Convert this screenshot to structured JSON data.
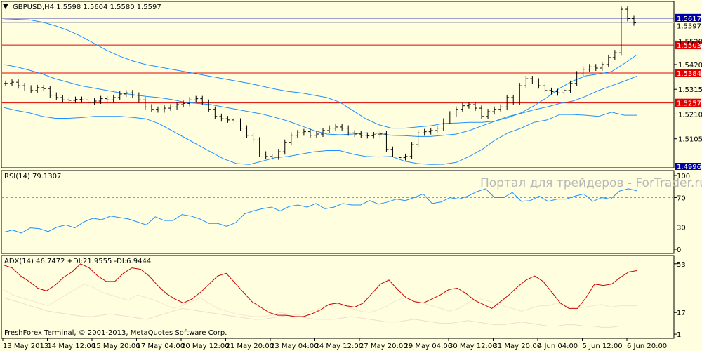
{
  "window": {
    "header": "GBPUSD,H4  1.5598 1.5604 1.5580 1.5597",
    "watermark": "Портал для трейдеров - ForTrader.ru",
    "copyright": "FreshForex Terminal, © 2001-2013, MetaQuotes Software Corp.",
    "dropdown_icon": "triangle-down-icon"
  },
  "colors": {
    "background": "#ffffe0",
    "frame": "#000000",
    "bollinger": "#1e90ff",
    "level_line": "#e00000",
    "current_line": "#0000aa",
    "rsi": "#1e90ff",
    "adx": "#cc0000",
    "di_plus": "#f3e6cc",
    "di_minus": "#f0dcd0",
    "candle": "#000000"
  },
  "chart_data": [
    {
      "type": "candlestick",
      "symbol": "GBPUSD",
      "timeframe": "H4",
      "ohlc_last": {
        "open": 1.5598,
        "high": 1.5604,
        "low": 1.558,
        "close": 1.5597
      },
      "ylim": [
        1.4985,
        1.5685
      ],
      "price_ticks": [
        "1.5520",
        "1.5420",
        "1.5315",
        "1.5210",
        "1.5105"
      ],
      "price_tick_values": [
        1.552,
        1.542,
        1.5315,
        1.521,
        1.5105
      ],
      "levels": [
        {
          "label": "1.5503",
          "value": 1.5503,
          "kind": "resistance"
        },
        {
          "label": "1.5384",
          "value": 1.5384,
          "kind": "resistance"
        },
        {
          "label": "1.5257",
          "value": 1.5257,
          "kind": "resistance"
        }
      ],
      "current_price": {
        "label": "1.5617",
        "value": 1.5617
      },
      "partial_label": "1.5597",
      "bottom_label": {
        "label": "1.4996",
        "value": 1.4996
      },
      "x_labels": [
        "13 May 2013",
        "14 May 12:00",
        "15 May 20:00",
        "17 May 04:00",
        "20 May 12:00",
        "21 May 20:00",
        "23 May 04:00",
        "24 May 12:00",
        "27 May 20:00",
        "29 May 04:00",
        "30 May 12:00",
        "31 May 20:00",
        "4 Jun 04:00",
        "5 Jun 12:00",
        "6 Jun 20:00"
      ],
      "closes": [
        1.534,
        1.5345,
        1.533,
        1.532,
        1.531,
        1.5322,
        1.5318,
        1.529,
        1.528,
        1.527,
        1.5268,
        1.5272,
        1.527,
        1.526,
        1.5265,
        1.5275,
        1.527,
        1.528,
        1.5295,
        1.53,
        1.529,
        1.527,
        1.524,
        1.523,
        1.5228,
        1.5235,
        1.524,
        1.525,
        1.5255,
        1.527,
        1.5275,
        1.526,
        1.523,
        1.52,
        1.519,
        1.5185,
        1.518,
        1.515,
        1.512,
        1.51,
        1.504,
        1.503,
        1.5028,
        1.505,
        1.509,
        1.512,
        1.513,
        1.5135,
        1.512,
        1.5125,
        1.514,
        1.515,
        1.5155,
        1.515,
        1.513,
        1.5125,
        1.512,
        1.5118,
        1.5122,
        1.5125,
        1.506,
        1.504,
        1.5025,
        1.503,
        1.508,
        1.513,
        1.5135,
        1.514,
        1.515,
        1.518,
        1.521,
        1.523,
        1.5245,
        1.525,
        1.5235,
        1.52,
        1.522,
        1.523,
        1.524,
        1.528,
        1.526,
        1.533,
        1.536,
        1.535,
        1.533,
        1.531,
        1.5305,
        1.53,
        1.531,
        1.534,
        1.538,
        1.54,
        1.541,
        1.5405,
        1.542,
        1.545,
        1.547,
        1.5655,
        1.5615,
        1.5597
      ],
      "bollinger": [
        {
          "name": "upper",
          "values": [
            1.561,
            1.5612,
            1.561,
            1.56,
            1.5585,
            1.5565,
            1.554,
            1.551,
            1.548,
            1.5455,
            1.5435,
            1.542,
            1.541,
            1.54,
            1.539,
            1.538,
            1.537,
            1.536,
            1.535,
            1.534,
            1.5328,
            1.5316,
            1.5306,
            1.53,
            1.529,
            1.528,
            1.526,
            1.5225,
            1.519,
            1.5165,
            1.515,
            1.515,
            1.5155,
            1.516,
            1.517,
            1.5172,
            1.5175,
            1.5175,
            1.518,
            1.5195,
            1.5215,
            1.5245,
            1.528,
            1.532,
            1.535,
            1.5372,
            1.538,
            1.539,
            1.5425,
            1.5463
          ]
        },
        {
          "name": "middle",
          "values": [
            1.542,
            1.541,
            1.5396,
            1.538,
            1.536,
            1.5345,
            1.533,
            1.532,
            1.531,
            1.53,
            1.5292,
            1.5285,
            1.528,
            1.5272,
            1.526,
            1.5255,
            1.525,
            1.524,
            1.523,
            1.522,
            1.521,
            1.5196,
            1.518,
            1.516,
            1.514,
            1.5125,
            1.5122,
            1.5125,
            1.513,
            1.5128,
            1.512,
            1.5118,
            1.5115,
            1.5115,
            1.512,
            1.5125,
            1.514,
            1.516,
            1.518,
            1.52,
            1.5213,
            1.5228,
            1.524,
            1.5255,
            1.5265,
            1.5285,
            1.531,
            1.533,
            1.535,
            1.5372
          ]
        },
        {
          "name": "lower",
          "values": [
            1.5238,
            1.5225,
            1.5215,
            1.52,
            1.5192,
            1.5192,
            1.5195,
            1.52,
            1.52,
            1.52,
            1.5196,
            1.519,
            1.517,
            1.514,
            1.511,
            1.508,
            1.505,
            1.502,
            1.5,
            1.4996,
            1.501,
            1.5025,
            1.503,
            1.504,
            1.505,
            1.5055,
            1.5055,
            1.504,
            1.503,
            1.5028,
            1.503,
            1.501,
            1.5,
            1.4996,
            1.4997,
            1.5005,
            1.503,
            1.506,
            1.51,
            1.513,
            1.515,
            1.5175,
            1.5185,
            1.5208,
            1.5208,
            1.5205,
            1.52,
            1.5218,
            1.5205,
            1.5205
          ]
        }
      ]
    },
    {
      "type": "line",
      "indicator": "RSI(14)",
      "value": 79.1307,
      "title": "RSI(14) 79.1307",
      "ylim": [
        0,
        100
      ],
      "y_ticks": [
        "100",
        "70",
        "30",
        "0"
      ],
      "y_tick_values": [
        100,
        70,
        30,
        0
      ],
      "series": [
        {
          "values": [
            23,
            26,
            22,
            29,
            28,
            24,
            30,
            33,
            29,
            37,
            42,
            40,
            45,
            43,
            41,
            37,
            33,
            44,
            39,
            39,
            47,
            45,
            41,
            35,
            35,
            31,
            36,
            48,
            52,
            55,
            57,
            52,
            58,
            60,
            57,
            62,
            55,
            57,
            62,
            60,
            60,
            66,
            61,
            64,
            68,
            66,
            70,
            75,
            62,
            64,
            70,
            68,
            72,
            78,
            82,
            70,
            70,
            77,
            65,
            66,
            72,
            65,
            68,
            68,
            72,
            75,
            65,
            70,
            68,
            79,
            82,
            79
          ]
        }
      ]
    },
    {
      "type": "line",
      "indicator": "ADX(14)",
      "title": "ADX(14) 46.7472 +DI:21.9555 -DI:6.9444",
      "adx": 46.7472,
      "di_plus": 21.9555,
      "di_minus": 6.9444,
      "ylim": [
        0,
        56
      ],
      "y_ticks": [
        "53",
        "17",
        "1"
      ],
      "y_tick_values": [
        53,
        17,
        1
      ],
      "series": [
        {
          "name": "ADX",
          "values": [
            52,
            50,
            44,
            40,
            35,
            33,
            37,
            43,
            47,
            53,
            50,
            44,
            40,
            40,
            46,
            50,
            49,
            44,
            37,
            31,
            27,
            24,
            27,
            32,
            38,
            44,
            46,
            39,
            32,
            25,
            21,
            17,
            15,
            15,
            14,
            14,
            16,
            19,
            23,
            24,
            22,
            21,
            24,
            31,
            38,
            41,
            34,
            28,
            25,
            24,
            27,
            30,
            34,
            35,
            31,
            26,
            23,
            20,
            25,
            30,
            36,
            41,
            44,
            40,
            32,
            24,
            20,
            20,
            28,
            38,
            37,
            38,
            43,
            47,
            48
          ]
        },
        {
          "name": "+DI",
          "values": [
            34,
            30,
            28,
            26,
            24,
            22,
            26,
            30,
            34,
            38,
            36,
            32,
            30,
            28,
            26,
            30,
            28,
            26,
            23,
            20,
            22,
            25,
            28,
            24,
            20,
            18,
            16,
            15,
            14,
            14,
            15,
            17,
            16,
            15,
            17,
            19,
            22,
            24,
            22,
            20,
            18,
            17,
            19,
            22,
            26,
            28,
            26,
            24,
            22,
            20,
            18,
            20,
            24,
            28,
            26,
            24,
            22,
            20,
            18,
            20,
            22,
            22,
            24,
            22,
            20,
            21,
            22,
            23,
            21,
            22,
            22,
            22
          ]
        },
        {
          "name": "-DI",
          "values": [
            28,
            26,
            24,
            22,
            20,
            18,
            17,
            16,
            15,
            14,
            14,
            15,
            16,
            15,
            14,
            13,
            12,
            14,
            16,
            18,
            20,
            19,
            18,
            17,
            16,
            15,
            14,
            13,
            12,
            12,
            13,
            14,
            15,
            14,
            13,
            12,
            12,
            12,
            13,
            14,
            13,
            12,
            11,
            10,
            10,
            11,
            12,
            11,
            10,
            9,
            9,
            10,
            11,
            10,
            9,
            8,
            8,
            9,
            10,
            9,
            8,
            7,
            7,
            8,
            8,
            7,
            7,
            6,
            6,
            7,
            7,
            7
          ]
        }
      ]
    }
  ]
}
